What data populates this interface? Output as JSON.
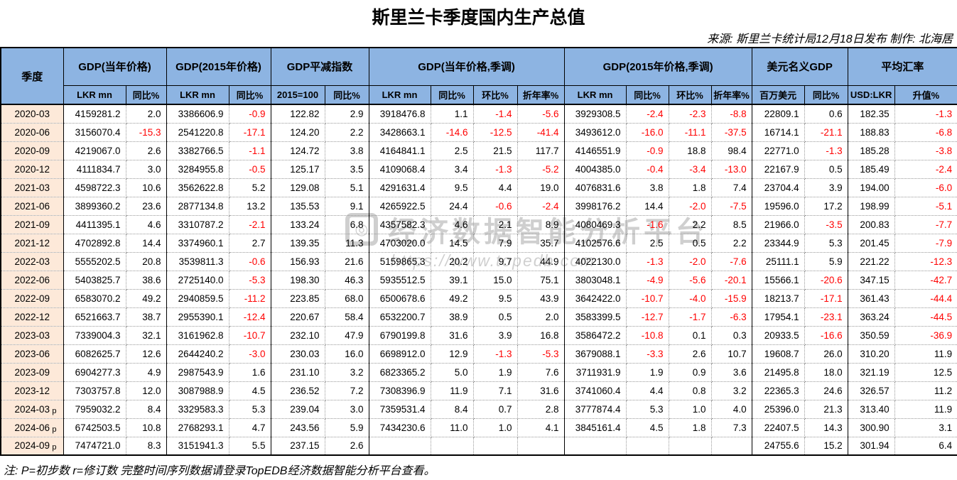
{
  "title": "斯里兰卡季度国内生产总值",
  "source": "来源: 斯里兰卡统计局12月18日发布 制作: 北海居",
  "note": "注: P=初步数 r=修订数 完整时间序列数据请登录TopEDB经济数据智能分析平台查看。",
  "watermark": {
    "logo_glyph": "◎",
    "text": "经济数据智能分析平台",
    "url": "https://www.topedb.com"
  },
  "colors": {
    "header_bg": "#8DB4E2",
    "quarter_bg": "#FDE9D9",
    "negative": "#FF0000",
    "border": "#000000"
  },
  "chart_data": {
    "type": "table",
    "title": "斯里兰卡季度国内生产总值",
    "corner_label": "季度",
    "column_groups": [
      {
        "label": "GDP(当年价格)",
        "span": 2
      },
      {
        "label": "GDP(2015年价格)",
        "span": 2
      },
      {
        "label": "GDP平减指数",
        "span": 2
      },
      {
        "label": "GDP(当年价格,季调)",
        "span": 4
      },
      {
        "label": "GDP(2015年价格,季调)",
        "span": 4
      },
      {
        "label": "美元名义GDP",
        "span": 2
      },
      {
        "label": "平均汇率",
        "span": 2
      }
    ],
    "unit_headers": [
      "LKR mn",
      "同比%",
      "LKR mn",
      "同比%",
      "2015=100",
      "同比%",
      "LKR mn",
      "同比%",
      "环比%",
      "折年率%",
      "LKR mn",
      "同比%",
      "环比%",
      "折年率%",
      "百万美元",
      "同比%",
      "USD:LKR",
      "升值%"
    ],
    "rows": [
      {
        "quarter": "2020-03",
        "flag": "",
        "values": [
          "4159281.2",
          "2.0",
          "3386606.9",
          "-0.9",
          "122.82",
          "2.9",
          "3918476.8",
          "1.1",
          "-1.4",
          "-5.6",
          "3929308.5",
          "-2.4",
          "-2.3",
          "-8.8",
          "22809.1",
          "0.6",
          "182.35",
          "-1.3"
        ]
      },
      {
        "quarter": "2020-06",
        "flag": "",
        "values": [
          "3156070.4",
          "-15.3",
          "2541220.8",
          "-17.1",
          "124.20",
          "2.2",
          "3428663.1",
          "-14.6",
          "-12.5",
          "-41.4",
          "3493612.0",
          "-16.0",
          "-11.1",
          "-37.5",
          "16714.1",
          "-21.1",
          "188.83",
          "-6.8"
        ]
      },
      {
        "quarter": "2020-09",
        "flag": "",
        "values": [
          "4219067.0",
          "2.6",
          "3382766.5",
          "-1.1",
          "124.72",
          "3.8",
          "4164841.1",
          "2.5",
          "21.5",
          "117.7",
          "4146551.9",
          "-0.9",
          "18.8",
          "98.4",
          "22771.0",
          "-1.3",
          "185.28",
          "-3.8"
        ]
      },
      {
        "quarter": "2020-12",
        "flag": "",
        "values": [
          "4111834.7",
          "3.0",
          "3284955.8",
          "-0.5",
          "125.17",
          "3.5",
          "4109068.4",
          "3.4",
          "-1.3",
          "-5.2",
          "4004385.0",
          "-0.4",
          "-3.4",
          "-13.0",
          "22167.9",
          "0.5",
          "185.49",
          "-2.4"
        ]
      },
      {
        "quarter": "2021-03",
        "flag": "",
        "values": [
          "4598722.3",
          "10.6",
          "3562622.8",
          "5.2",
          "129.08",
          "5.1",
          "4291631.4",
          "9.5",
          "4.4",
          "19.0",
          "4076831.6",
          "3.8",
          "1.8",
          "7.4",
          "23704.4",
          "3.9",
          "194.00",
          "-6.0"
        ]
      },
      {
        "quarter": "2021-06",
        "flag": "",
        "values": [
          "3899360.2",
          "23.6",
          "2877134.8",
          "13.2",
          "135.53",
          "9.1",
          "4265922.5",
          "24.4",
          "-0.6",
          "-2.4",
          "3998176.2",
          "14.4",
          "-2.0",
          "-7.5",
          "19596.0",
          "17.2",
          "198.99",
          "-5.1"
        ]
      },
      {
        "quarter": "2021-09",
        "flag": "",
        "values": [
          "4411395.1",
          "4.6",
          "3310787.2",
          "-2.1",
          "133.24",
          "6.8",
          "4357582.3",
          "4.6",
          "2.1",
          "8.9",
          "4080469.3",
          "-1.6",
          "2.2",
          "8.5",
          "21966.0",
          "-3.5",
          "200.83",
          "-7.7"
        ]
      },
      {
        "quarter": "2021-12",
        "flag": "",
        "values": [
          "4702892.8",
          "14.4",
          "3374960.1",
          "2.7",
          "139.35",
          "11.3",
          "4703020.0",
          "14.5",
          "7.9",
          "35.7",
          "4102576.6",
          "2.5",
          "0.5",
          "2.2",
          "23344.9",
          "5.3",
          "201.45",
          "-7.9"
        ]
      },
      {
        "quarter": "2022-03",
        "flag": "",
        "values": [
          "5555202.5",
          "20.8",
          "3539811.3",
          "-0.6",
          "156.93",
          "21.6",
          "5159865.3",
          "20.2",
          "9.7",
          "44.9",
          "4022130.0",
          "-1.3",
          "-2.0",
          "-7.6",
          "25111.1",
          "5.9",
          "221.22",
          "-12.3"
        ]
      },
      {
        "quarter": "2022-06",
        "flag": "",
        "values": [
          "5403825.7",
          "38.6",
          "2725140.0",
          "-5.3",
          "198.30",
          "46.3",
          "5935512.5",
          "39.1",
          "15.0",
          "75.1",
          "3803048.1",
          "-4.9",
          "-5.6",
          "-20.1",
          "15566.1",
          "-20.6",
          "347.15",
          "-42.7"
        ]
      },
      {
        "quarter": "2022-09",
        "flag": "",
        "values": [
          "6583070.2",
          "49.2",
          "2940859.5",
          "-11.2",
          "223.85",
          "68.0",
          "6500678.6",
          "49.2",
          "9.5",
          "43.9",
          "3642422.0",
          "-10.7",
          "-4.0",
          "-15.9",
          "18213.7",
          "-17.1",
          "361.43",
          "-44.4"
        ]
      },
      {
        "quarter": "2022-12",
        "flag": "",
        "values": [
          "6521663.7",
          "38.7",
          "2955390.1",
          "-12.4",
          "220.67",
          "58.4",
          "6532200.7",
          "38.9",
          "0.5",
          "2.0",
          "3583399.5",
          "-12.7",
          "-1.7",
          "-6.3",
          "17954.1",
          "-23.1",
          "363.24",
          "-44.5"
        ]
      },
      {
        "quarter": "2023-03",
        "flag": "",
        "values": [
          "7339004.3",
          "32.1",
          "3161962.8",
          "-10.7",
          "232.10",
          "47.9",
          "6790199.8",
          "31.6",
          "3.9",
          "16.8",
          "3586472.2",
          "-10.8",
          "0.1",
          "0.3",
          "20933.5",
          "-16.6",
          "350.59",
          "-36.9"
        ]
      },
      {
        "quarter": "2023-06",
        "flag": "",
        "values": [
          "6082625.7",
          "12.6",
          "2644240.2",
          "-3.0",
          "230.03",
          "16.0",
          "6698912.0",
          "12.9",
          "-1.3",
          "-5.3",
          "3679088.1",
          "-3.3",
          "2.6",
          "10.7",
          "19608.7",
          "26.0",
          "310.20",
          "11.9"
        ]
      },
      {
        "quarter": "2023-09",
        "flag": "",
        "values": [
          "6904277.3",
          "4.9",
          "2987543.9",
          "1.6",
          "231.10",
          "3.2",
          "6823365.2",
          "5.0",
          "1.9",
          "7.6",
          "3711931.9",
          "1.9",
          "0.9",
          "3.6",
          "21495.8",
          "18.0",
          "321.19",
          "12.5"
        ]
      },
      {
        "quarter": "2023-12",
        "flag": "",
        "values": [
          "7303757.8",
          "12.0",
          "3087988.9",
          "4.5",
          "236.52",
          "7.2",
          "7308396.9",
          "11.9",
          "7.1",
          "31.6",
          "3741060.4",
          "4.4",
          "0.8",
          "3.2",
          "22365.3",
          "24.6",
          "326.57",
          "11.2"
        ]
      },
      {
        "quarter": "2024-03",
        "flag": "p",
        "values": [
          "7959032.2",
          "8.4",
          "3329583.3",
          "5.3",
          "239.04",
          "3.0",
          "7359531.4",
          "8.4",
          "0.7",
          "2.8",
          "3777874.4",
          "5.3",
          "1.0",
          "4.0",
          "25396.0",
          "21.3",
          "313.40",
          "11.9"
        ]
      },
      {
        "quarter": "2024-06",
        "flag": "p",
        "values": [
          "6742503.5",
          "10.8",
          "2768293.1",
          "4.7",
          "243.56",
          "5.9",
          "7434230.6",
          "11.0",
          "1.0",
          "4.1",
          "3845161.4",
          "4.5",
          "1.8",
          "7.3",
          "22407.5",
          "14.3",
          "300.90",
          "3.1"
        ]
      },
      {
        "quarter": "2024-09",
        "flag": "p",
        "values": [
          "7474721.0",
          "8.3",
          "3151941.3",
          "5.5",
          "237.15",
          "2.6",
          "",
          "",
          "",
          "",
          "",
          "",
          "",
          "",
          "24755.6",
          "15.2",
          "301.94",
          "6.4"
        ]
      }
    ]
  }
}
